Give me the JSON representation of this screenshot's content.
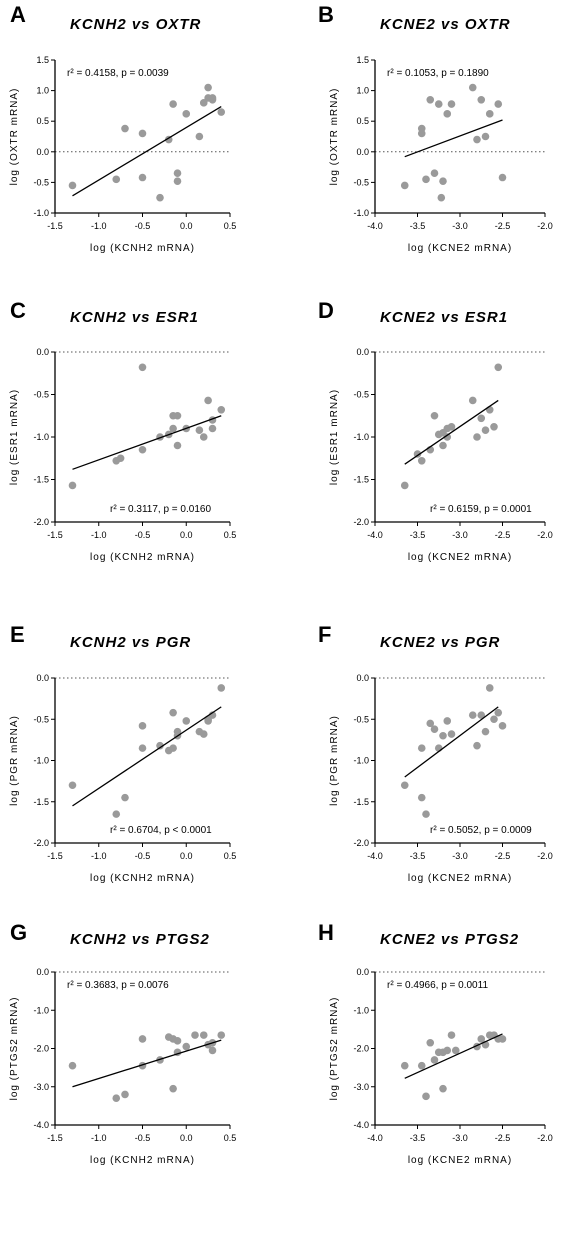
{
  "chart_data": [
    {
      "letter": "A",
      "title": "KCNH2 vs OXTR",
      "type": "scatter",
      "xlabel": "log (KCNH2 mRNA)",
      "ylabel": "log (OXTR mRNA)",
      "xlim": [
        -1.5,
        0.5
      ],
      "ylim": [
        -1.0,
        1.5
      ],
      "xticks": [
        "-1.5",
        "-1.0",
        "-0.5",
        "0.0",
        "0.5"
      ],
      "yticks": [
        "1.5",
        "1.0",
        "0.5",
        "0.0",
        "-0.5",
        "-1.0"
      ],
      "stat": "r² = 0.4158, p = 0.0039",
      "x": [
        -1.3,
        -0.8,
        -0.7,
        -0.5,
        -0.5,
        -0.3,
        -0.2,
        -0.15,
        -0.1,
        -0.1,
        0.0,
        0.15,
        0.2,
        0.25,
        0.25,
        0.3,
        0.3,
        0.4
      ],
      "y": [
        -0.55,
        -0.45,
        0.38,
        0.3,
        -0.42,
        -0.75,
        0.2,
        0.78,
        -0.35,
        -0.48,
        0.62,
        0.25,
        0.8,
        0.88,
        1.05,
        0.85,
        0.88,
        0.65
      ],
      "fit": [
        [
          -1.3,
          -0.72
        ],
        [
          0.4,
          0.74
        ]
      ]
    },
    {
      "letter": "B",
      "title": "KCNE2 vs OXTR",
      "type": "scatter",
      "xlabel": "log (KCNE2 mRNA)",
      "ylabel": "log (OXTR mRNA)",
      "xlim": [
        -4.0,
        -2.0
      ],
      "ylim": [
        -1.0,
        1.5
      ],
      "xticks": [
        "-4.0",
        "-3.5",
        "-3.0",
        "-2.5",
        "-2.0"
      ],
      "yticks": [
        "1.5",
        "1.0",
        "0.5",
        "0.0",
        "-0.5",
        "-1.0"
      ],
      "stat": "r² = 0.1053, p = 0.1890",
      "x": [
        -3.65,
        -3.45,
        -3.45,
        -3.4,
        -3.35,
        -3.3,
        -3.25,
        -3.22,
        -3.2,
        -3.15,
        -3.1,
        -2.85,
        -2.8,
        -2.75,
        -2.7,
        -2.65,
        -2.55,
        -2.5
      ],
      "y": [
        -0.55,
        0.3,
        0.38,
        -0.45,
        0.85,
        -0.35,
        0.78,
        -0.75,
        -0.48,
        0.62,
        0.78,
        1.05,
        0.2,
        0.85,
        0.25,
        0.62,
        0.78,
        -0.42
      ],
      "fit": [
        [
          -3.65,
          -0.08
        ],
        [
          -2.5,
          0.52
        ]
      ]
    },
    {
      "letter": "C",
      "title": "KCNH2 vs ESR1",
      "type": "scatter",
      "xlabel": "log (KCNH2 mRNA)",
      "ylabel": "log (ESR1 mRNA)",
      "xlim": [
        -1.5,
        0.5
      ],
      "ylim": [
        -2.0,
        0.0
      ],
      "xticks": [
        "-1.5",
        "-1.0",
        "-0.5",
        "0.0",
        "0.5"
      ],
      "yticks": [
        "0.0",
        "-0.5",
        "-1.0",
        "-1.5",
        "-2.0"
      ],
      "stat": "r² = 0.3117, p = 0.0160",
      "x": [
        -1.3,
        -0.8,
        -0.75,
        -0.5,
        -0.5,
        -0.3,
        -0.2,
        -0.15,
        -0.15,
        -0.1,
        -0.1,
        0.0,
        0.15,
        0.2,
        0.25,
        0.3,
        0.3,
        0.4
      ],
      "y": [
        -1.57,
        -1.28,
        -1.25,
        -0.18,
        -1.15,
        -1.0,
        -0.97,
        -0.75,
        -0.9,
        -0.75,
        -1.1,
        -0.9,
        -0.92,
        -1.0,
        -0.57,
        -0.8,
        -0.9,
        -0.68
      ],
      "fit": [
        [
          -1.3,
          -1.38
        ],
        [
          0.4,
          -0.75
        ]
      ]
    },
    {
      "letter": "D",
      "title": "KCNE2 vs ESR1",
      "type": "scatter",
      "xlabel": "log (KCNE2 mRNA)",
      "ylabel": "log (ESR1 mRNA)",
      "xlim": [
        -4.0,
        -2.0
      ],
      "ylim": [
        -2.0,
        0.0
      ],
      "xticks": [
        "-4.0",
        "-3.5",
        "-3.0",
        "-2.5",
        "-2.0"
      ],
      "yticks": [
        "0.0",
        "-0.5",
        "-1.0",
        "-1.5",
        "-2.0"
      ],
      "stat": "r² = 0.6159, p = 0.0001",
      "x": [
        -3.65,
        -3.5,
        -3.45,
        -3.35,
        -3.3,
        -3.25,
        -3.2,
        -3.2,
        -3.15,
        -3.15,
        -3.1,
        -2.85,
        -2.8,
        -2.75,
        -2.7,
        -2.65,
        -2.6,
        -2.55
      ],
      "y": [
        -1.57,
        -1.2,
        -1.28,
        -1.15,
        -0.75,
        -0.97,
        -0.95,
        -1.1,
        -0.9,
        -1.0,
        -0.88,
        -0.57,
        -1.0,
        -0.78,
        -0.92,
        -0.68,
        -0.88,
        -0.18
      ],
      "fit": [
        [
          -3.65,
          -1.32
        ],
        [
          -2.55,
          -0.57
        ]
      ]
    },
    {
      "letter": "E",
      "title": "KCNH2 vs PGR",
      "type": "scatter",
      "xlabel": "log (KCNH2 mRNA)",
      "ylabel": "log (PGR mRNA)",
      "xlim": [
        -1.5,
        0.5
      ],
      "ylim": [
        -2.0,
        0.0
      ],
      "xticks": [
        "-1.5",
        "-1.0",
        "-0.5",
        "0.0",
        "0.5"
      ],
      "yticks": [
        "0.0",
        "-0.5",
        "-1.0",
        "-1.5",
        "-2.0"
      ],
      "stat": "r² = 0.6704, p < 0.0001",
      "x": [
        -1.3,
        -0.8,
        -0.7,
        -0.5,
        -0.5,
        -0.3,
        -0.2,
        -0.15,
        -0.15,
        -0.1,
        -0.1,
        0.0,
        0.15,
        0.2,
        0.25,
        0.25,
        0.3,
        0.4
      ],
      "y": [
        -1.3,
        -1.65,
        -1.45,
        -0.58,
        -0.85,
        -0.82,
        -0.88,
        -0.42,
        -0.85,
        -0.65,
        -0.7,
        -0.52,
        -0.65,
        -0.68,
        -0.5,
        -0.52,
        -0.45,
        -0.12
      ],
      "fit": [
        [
          -1.3,
          -1.55
        ],
        [
          0.4,
          -0.35
        ]
      ]
    },
    {
      "letter": "F",
      "title": "KCNE2 vs PGR",
      "type": "scatter",
      "xlabel": "log (KCNE2 mRNA)",
      "ylabel": "log (PGR mRNA)",
      "xlim": [
        -4.0,
        -2.0
      ],
      "ylim": [
        -2.0,
        0.0
      ],
      "xticks": [
        "-4.0",
        "-3.5",
        "-3.0",
        "-2.5",
        "-2.0"
      ],
      "yticks": [
        "0.0",
        "-0.5",
        "-1.0",
        "-1.5",
        "-2.0"
      ],
      "stat": "r² = 0.5052, p = 0.0009",
      "x": [
        -3.65,
        -3.45,
        -3.45,
        -3.4,
        -3.35,
        -3.3,
        -3.25,
        -3.2,
        -3.15,
        -3.1,
        -2.85,
        -2.8,
        -2.75,
        -2.7,
        -2.65,
        -2.6,
        -2.55,
        -2.5
      ],
      "y": [
        -1.3,
        -0.85,
        -1.45,
        -1.65,
        -0.55,
        -0.62,
        -0.85,
        -0.7,
        -0.52,
        -0.68,
        -0.45,
        -0.82,
        -0.45,
        -0.65,
        -0.12,
        -0.5,
        -0.42,
        -0.58
      ],
      "fit": [
        [
          -3.65,
          -1.2
        ],
        [
          -2.55,
          -0.35
        ]
      ]
    },
    {
      "letter": "G",
      "title": "KCNH2 vs PTGS2",
      "type": "scatter",
      "xlabel": "log (KCNH2 mRNA)",
      "ylabel": "log (PTGS2 mRNA)",
      "xlim": [
        -1.5,
        0.5
      ],
      "ylim": [
        -4.0,
        0.0
      ],
      "xticks": [
        "-1.5",
        "-1.0",
        "-0.5",
        "0.0",
        "0.5"
      ],
      "yticks": [
        "0.0",
        "-1.0",
        "-2.0",
        "-3.0",
        "-4.0"
      ],
      "stat": "r² = 0.3683, p = 0.0076",
      "x": [
        -1.3,
        -0.8,
        -0.7,
        -0.5,
        -0.5,
        -0.3,
        -0.2,
        -0.15,
        -0.15,
        -0.1,
        -0.1,
        0.0,
        0.1,
        0.2,
        0.25,
        0.3,
        0.3,
        0.4
      ],
      "y": [
        -2.45,
        -3.3,
        -3.2,
        -2.45,
        -1.75,
        -2.3,
        -1.7,
        -1.75,
        -3.05,
        -1.8,
        -2.1,
        -1.95,
        -1.65,
        -1.65,
        -1.9,
        -2.05,
        -1.85,
        -1.65
      ],
      "fit": [
        [
          -1.3,
          -3.0
        ],
        [
          0.4,
          -1.78
        ]
      ]
    },
    {
      "letter": "H",
      "title": "KCNE2 vs PTGS2",
      "type": "scatter",
      "xlabel": "log (KCNE2 mRNA)",
      "ylabel": "log (PTGS2 mRNA)",
      "xlim": [
        -4.0,
        -2.0
      ],
      "ylim": [
        -4.0,
        0.0
      ],
      "xticks": [
        "-4.0",
        "-3.5",
        "-3.0",
        "-2.5",
        "-2.0"
      ],
      "yticks": [
        "0.0",
        "-1.0",
        "-2.0",
        "-3.0",
        "-4.0"
      ],
      "stat": "r² = 0.4966, p = 0.0011",
      "x": [
        -3.65,
        -3.45,
        -3.4,
        -3.35,
        -3.3,
        -3.25,
        -3.2,
        -3.2,
        -3.15,
        -3.1,
        -3.05,
        -2.8,
        -2.75,
        -2.7,
        -2.65,
        -2.6,
        -2.55,
        -2.5
      ],
      "y": [
        -2.45,
        -2.45,
        -3.25,
        -1.85,
        -2.3,
        -2.1,
        -2.1,
        -3.05,
        -2.05,
        -1.65,
        -2.05,
        -1.95,
        -1.75,
        -1.9,
        -1.65,
        -1.65,
        -1.75,
        -1.75
      ],
      "fit": [
        [
          -3.65,
          -2.78
        ],
        [
          -2.5,
          -1.62
        ]
      ]
    }
  ]
}
